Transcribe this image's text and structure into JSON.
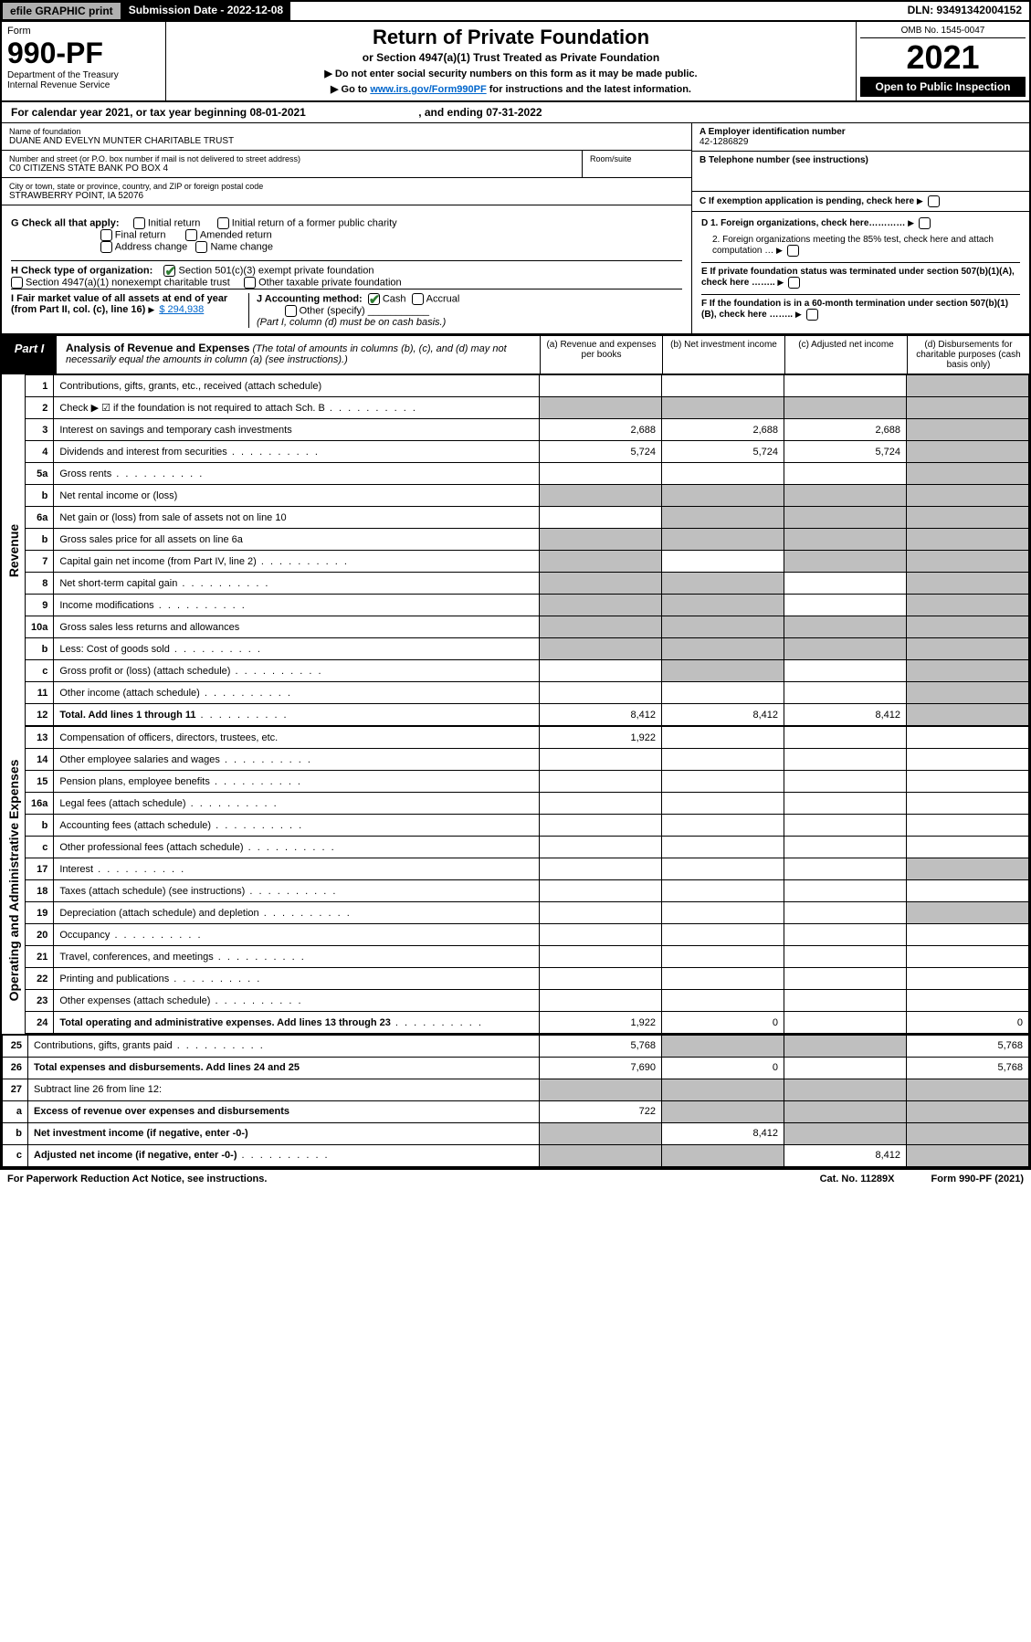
{
  "topbar": {
    "efile": "efile GRAPHIC print",
    "submission_label": "Submission Date - 2022-12-08",
    "dln": "DLN: 93491342004152"
  },
  "header": {
    "form_label": "Form",
    "form_number": "990-PF",
    "dept": "Department of the Treasury",
    "irs": "Internal Revenue Service",
    "title": "Return of Private Foundation",
    "subtitle": "or Section 4947(a)(1) Trust Treated as Private Foundation",
    "note1": "▶ Do not enter social security numbers on this form as it may be made public.",
    "note2_pre": "▶ Go to ",
    "note2_link": "www.irs.gov/Form990PF",
    "note2_post": " for instructions and the latest information.",
    "omb": "OMB No. 1545-0047",
    "year": "2021",
    "open": "Open to Public Inspection"
  },
  "calendar": {
    "text_a": "For calendar year 2021, or tax year beginning ",
    "begin": "08-01-2021",
    "text_b": " , and ending ",
    "end": "07-31-2022"
  },
  "info": {
    "name_lbl": "Name of foundation",
    "name": "DUANE AND EVELYN MUNTER CHARITABLE TRUST",
    "addr_lbl": "Number and street (or P.O. box number if mail is not delivered to street address)",
    "addr": "C0 CITIZENS STATE BANK PO BOX 4",
    "room_lbl": "Room/suite",
    "city_lbl": "City or town, state or province, country, and ZIP or foreign postal code",
    "city": "STRAWBERRY POINT, IA  52076",
    "ein_lbl": "A Employer identification number",
    "ein": "42-1286829",
    "tel_lbl": "B Telephone number (see instructions)",
    "c_lbl": "C If exemption application is pending, check here",
    "d1": "D 1. Foreign organizations, check here…………",
    "d2": "2. Foreign organizations meeting the 85% test, check here and attach computation …",
    "e_lbl": "E  If private foundation status was terminated under section 507(b)(1)(A), check here ……..",
    "f_lbl": "F  If the foundation is in a 60-month termination under section 507(b)(1)(B), check here ……..",
    "g_lbl": "G Check all that apply:",
    "g_opts": [
      "Initial return",
      "Final return",
      "Address change",
      "Initial return of a former public charity",
      "Amended return",
      "Name change"
    ],
    "h_lbl": "H Check type of organization:",
    "h1": "Section 501(c)(3) exempt private foundation",
    "h2": "Section 4947(a)(1) nonexempt charitable trust",
    "h3": "Other taxable private foundation",
    "i_lbl": "I Fair market value of all assets at end of year (from Part II, col. (c), line 16)",
    "i_val": "$  294,938",
    "j_lbl": "J Accounting method:",
    "j_cash": "Cash",
    "j_accrual": "Accrual",
    "j_other": "Other (specify)",
    "j_note": "(Part I, column (d) must be on cash basis.)"
  },
  "part1": {
    "label": "Part I",
    "title": "Analysis of Revenue and Expenses",
    "subtitle": "(The total of amounts in columns (b), (c), and (d) may not necessarily equal the amounts in column (a) (see instructions).)",
    "cols": {
      "a": "(a)   Revenue and expenses per books",
      "b": "(b)   Net investment income",
      "c": "(c)   Adjusted net income",
      "d": "(d)  Disbursements for charitable purposes (cash basis only)"
    }
  },
  "sections": {
    "revenue": "Revenue",
    "opex": "Operating and Administrative Expenses"
  },
  "rows": [
    {
      "n": "1",
      "t": "Contributions, gifts, grants, etc., received (attach schedule)",
      "a": "",
      "b": "",
      "c": "",
      "d": "g"
    },
    {
      "n": "2",
      "t": "Check ▶ ☑ if the foundation is not required to attach Sch. B",
      "dots": true,
      "a": "g",
      "b": "g",
      "c": "g",
      "d": "g"
    },
    {
      "n": "3",
      "t": "Interest on savings and temporary cash investments",
      "a": "2,688",
      "b": "2,688",
      "c": "2,688",
      "d": "g"
    },
    {
      "n": "4",
      "t": "Dividends and interest from securities",
      "dots": true,
      "a": "5,724",
      "b": "5,724",
      "c": "5,724",
      "d": "g"
    },
    {
      "n": "5a",
      "t": "Gross rents",
      "dots": true,
      "a": "",
      "b": "",
      "c": "",
      "d": "g"
    },
    {
      "n": "b",
      "t": "Net rental income or (loss)",
      "a": "g",
      "b": "g",
      "c": "g",
      "d": "g"
    },
    {
      "n": "6a",
      "t": "Net gain or (loss) from sale of assets not on line 10",
      "a": "",
      "b": "g",
      "c": "g",
      "d": "g"
    },
    {
      "n": "b",
      "t": "Gross sales price for all assets on line 6a",
      "a": "g",
      "b": "g",
      "c": "g",
      "d": "g"
    },
    {
      "n": "7",
      "t": "Capital gain net income (from Part IV, line 2)",
      "dots": true,
      "a": "g",
      "b": "",
      "c": "g",
      "d": "g"
    },
    {
      "n": "8",
      "t": "Net short-term capital gain",
      "dots": true,
      "a": "g",
      "b": "g",
      "c": "",
      "d": "g"
    },
    {
      "n": "9",
      "t": "Income modifications",
      "dots": true,
      "a": "g",
      "b": "g",
      "c": "",
      "d": "g"
    },
    {
      "n": "10a",
      "t": "Gross sales less returns and allowances",
      "a": "g",
      "b": "g",
      "c": "g",
      "d": "g"
    },
    {
      "n": "b",
      "t": "Less: Cost of goods sold",
      "dots": true,
      "a": "g",
      "b": "g",
      "c": "g",
      "d": "g"
    },
    {
      "n": "c",
      "t": "Gross profit or (loss) (attach schedule)",
      "dots": true,
      "a": "",
      "b": "g",
      "c": "",
      "d": "g"
    },
    {
      "n": "11",
      "t": "Other income (attach schedule)",
      "dots": true,
      "a": "",
      "b": "",
      "c": "",
      "d": "g"
    },
    {
      "n": "12",
      "t": "Total. Add lines 1 through 11",
      "dots": true,
      "bold": true,
      "a": "8,412",
      "b": "8,412",
      "c": "8,412",
      "d": "g"
    },
    {
      "n": "13",
      "t": "Compensation of officers, directors, trustees, etc.",
      "a": "1,922",
      "b": "",
      "c": "",
      "d": ""
    },
    {
      "n": "14",
      "t": "Other employee salaries and wages",
      "dots": true,
      "a": "",
      "b": "",
      "c": "",
      "d": ""
    },
    {
      "n": "15",
      "t": "Pension plans, employee benefits",
      "dots": true,
      "a": "",
      "b": "",
      "c": "",
      "d": ""
    },
    {
      "n": "16a",
      "t": "Legal fees (attach schedule)",
      "dots": true,
      "a": "",
      "b": "",
      "c": "",
      "d": ""
    },
    {
      "n": "b",
      "t": "Accounting fees (attach schedule)",
      "dots": true,
      "a": "",
      "b": "",
      "c": "",
      "d": ""
    },
    {
      "n": "c",
      "t": "Other professional fees (attach schedule)",
      "dots": true,
      "a": "",
      "b": "",
      "c": "",
      "d": ""
    },
    {
      "n": "17",
      "t": "Interest",
      "dots": true,
      "a": "",
      "b": "",
      "c": "",
      "d": "g"
    },
    {
      "n": "18",
      "t": "Taxes (attach schedule) (see instructions)",
      "dots": true,
      "a": "",
      "b": "",
      "c": "",
      "d": ""
    },
    {
      "n": "19",
      "t": "Depreciation (attach schedule) and depletion",
      "dots": true,
      "a": "",
      "b": "",
      "c": "",
      "d": "g"
    },
    {
      "n": "20",
      "t": "Occupancy",
      "dots": true,
      "a": "",
      "b": "",
      "c": "",
      "d": ""
    },
    {
      "n": "21",
      "t": "Travel, conferences, and meetings",
      "dots": true,
      "a": "",
      "b": "",
      "c": "",
      "d": ""
    },
    {
      "n": "22",
      "t": "Printing and publications",
      "dots": true,
      "a": "",
      "b": "",
      "c": "",
      "d": ""
    },
    {
      "n": "23",
      "t": "Other expenses (attach schedule)",
      "dots": true,
      "a": "",
      "b": "",
      "c": "",
      "d": ""
    },
    {
      "n": "24",
      "t": "Total operating and administrative expenses. Add lines 13 through 23",
      "dots": true,
      "bold": true,
      "a": "1,922",
      "b": "0",
      "c": "",
      "d": "0"
    },
    {
      "n": "25",
      "t": "Contributions, gifts, grants paid",
      "dots": true,
      "a": "5,768",
      "b": "g",
      "c": "g",
      "d": "5,768"
    },
    {
      "n": "26",
      "t": "Total expenses and disbursements. Add lines 24 and 25",
      "bold": true,
      "a": "7,690",
      "b": "0",
      "c": "",
      "d": "5,768"
    },
    {
      "n": "27",
      "t": "Subtract line 26 from line 12:",
      "a": "g",
      "b": "g",
      "c": "g",
      "d": "g"
    },
    {
      "n": "a",
      "t": "Excess of revenue over expenses and disbursements",
      "bold": true,
      "a": "722",
      "b": "g",
      "c": "g",
      "d": "g"
    },
    {
      "n": "b",
      "t": "Net investment income (if negative, enter -0-)",
      "bold": true,
      "a": "g",
      "b": "8,412",
      "c": "g",
      "d": "g"
    },
    {
      "n": "c",
      "t": "Adjusted net income (if negative, enter -0-)",
      "dots": true,
      "bold": true,
      "a": "g",
      "b": "g",
      "c": "8,412",
      "d": "g"
    }
  ],
  "footer": {
    "left": "For Paperwork Reduction Act Notice, see instructions.",
    "mid": "Cat. No. 11289X",
    "right": "Form 990-PF (2021)"
  }
}
